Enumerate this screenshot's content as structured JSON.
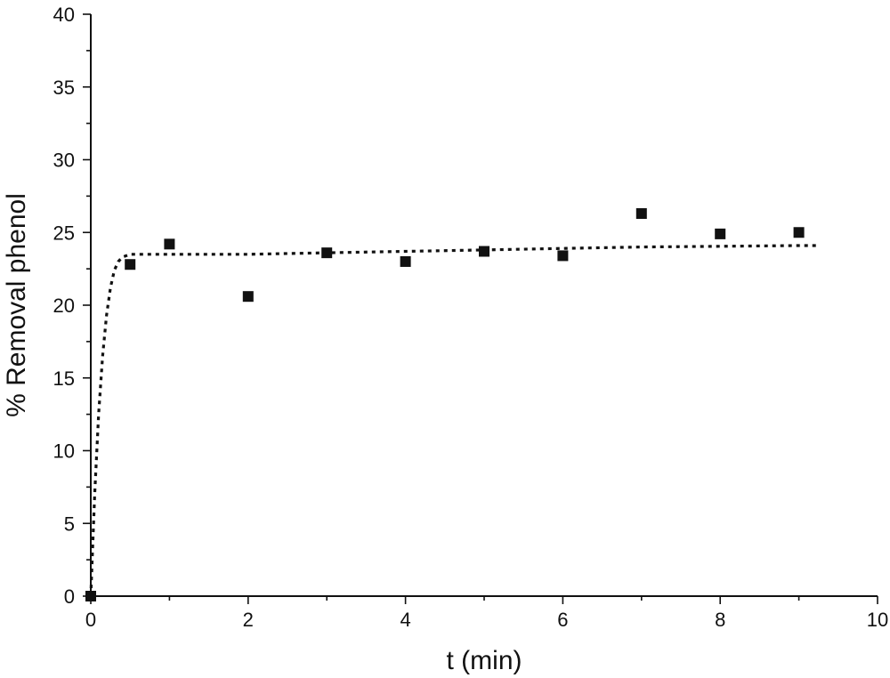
{
  "chart_data": {
    "type": "scatter",
    "xlabel": "t (min)",
    "ylabel": "% Removal phenol",
    "xlim": [
      0,
      10
    ],
    "ylim": [
      0,
      40
    ],
    "x_ticks": [
      0,
      2,
      4,
      6,
      8,
      10
    ],
    "y_ticks": [
      0,
      5,
      10,
      15,
      20,
      25,
      30,
      35,
      40
    ],
    "grid": false,
    "legend": "none",
    "series": [
      {
        "type": "scatter",
        "marker": "square",
        "color": "#111111",
        "x": [
          0,
          0.5,
          1,
          2,
          3,
          4,
          5,
          6,
          7,
          8,
          9
        ],
        "y": [
          0,
          22.8,
          24.2,
          20.6,
          23.6,
          23.0,
          23.7,
          23.4,
          26.3,
          24.9,
          25.0
        ]
      },
      {
        "type": "line",
        "style": "dotted",
        "color": "#111111",
        "x": [
          0,
          0.05,
          0.1,
          0.15,
          0.2,
          0.25,
          0.3,
          0.35,
          0.4,
          0.45,
          0.5,
          1,
          2,
          3,
          4,
          5,
          6,
          7,
          8,
          9,
          9.25
        ],
        "y": [
          0,
          7.0,
          12.5,
          16.5,
          19.3,
          21.2,
          22.4,
          23.0,
          23.3,
          23.4,
          23.5,
          23.5,
          23.5,
          23.6,
          23.7,
          23.8,
          23.9,
          24.0,
          24.05,
          24.1,
          24.1
        ]
      }
    ]
  }
}
